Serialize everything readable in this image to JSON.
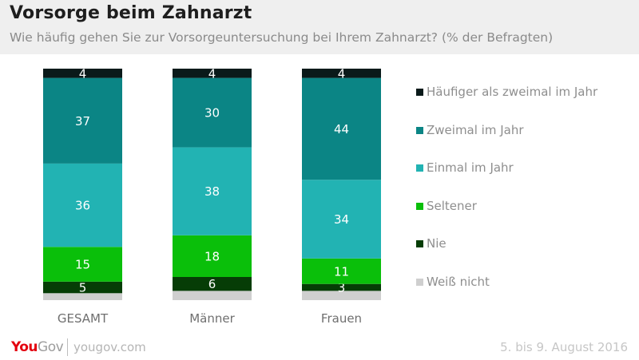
{
  "header": {
    "title": "Vorsorge beim Zahnarzt",
    "subtitle": "Wie häufig gehen Sie zur Vorsorgeuntersuchung bei Ihrem Zahnarzt? (% der Befragten)"
  },
  "chart_data": {
    "type": "bar",
    "stacked": true,
    "title": "Vorsorge beim Zahnarzt",
    "subtitle": "Wie häufig gehen Sie zur Vorsorgeuntersuchung bei Ihrem Zahnarzt? (% der Befragten)",
    "xlabel": "",
    "ylabel": "",
    "ylim": [
      0,
      100
    ],
    "grid": false,
    "legend_position": "right",
    "categories": [
      "GESAMT",
      "Männer",
      "Frauen"
    ],
    "series": [
      {
        "name": "Häufiger als zweimal im Jahr",
        "color": "#0a1a1a",
        "values": [
          4,
          4,
          4
        ],
        "labeled": [
          true,
          true,
          true
        ]
      },
      {
        "name": "Zweimal im Jahr",
        "color": "#0b8585",
        "values": [
          37,
          30,
          44
        ],
        "labeled": [
          true,
          true,
          true
        ]
      },
      {
        "name": "Einmal im Jahr",
        "color": "#22b3b3",
        "values": [
          36,
          38,
          34
        ],
        "labeled": [
          true,
          true,
          true
        ]
      },
      {
        "name": "Seltener",
        "color": "#0abf0a",
        "values": [
          15,
          18,
          11
        ],
        "labeled": [
          true,
          true,
          true
        ]
      },
      {
        "name": "Nie",
        "color": "#063d06",
        "values": [
          5,
          6,
          3
        ],
        "labeled": [
          true,
          true,
          true
        ]
      },
      {
        "name": "Weiß nicht",
        "color": "#cfcfcf",
        "values": [
          3,
          4,
          4
        ],
        "labeled": [
          false,
          false,
          false
        ]
      }
    ]
  },
  "footer": {
    "logo_you": "You",
    "logo_gov": "Gov",
    "url": "yougov.com",
    "date": "5. bis 9. August 2016"
  }
}
